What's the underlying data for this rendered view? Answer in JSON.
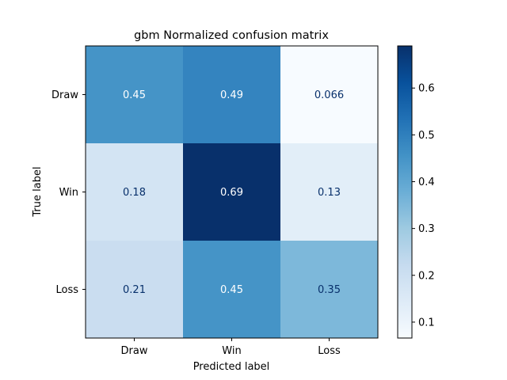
{
  "chart_data": {
    "type": "heatmap",
    "title": "gbm Normalized confusion matrix",
    "xlabel": "Predicted label",
    "ylabel": "True label",
    "x_categories": [
      "Draw",
      "Win",
      "Loss"
    ],
    "y_categories": [
      "Draw",
      "Win",
      "Loss"
    ],
    "values": [
      [
        0.45,
        0.49,
        0.066
      ],
      [
        0.18,
        0.69,
        0.13
      ],
      [
        0.21,
        0.45,
        0.35
      ]
    ],
    "cell_labels": [
      [
        "0.45",
        "0.49",
        "0.066"
      ],
      [
        "0.18",
        "0.69",
        "0.13"
      ],
      [
        "0.21",
        "0.45",
        "0.35"
      ]
    ],
    "colormap": "Blues",
    "colorbar": {
      "range": [
        0.066,
        0.69
      ],
      "ticks": [
        0.1,
        0.2,
        0.3,
        0.4,
        0.5,
        0.6
      ],
      "tick_labels": [
        "0.1",
        "0.2",
        "0.3",
        "0.4",
        "0.5",
        "0.6"
      ]
    }
  }
}
